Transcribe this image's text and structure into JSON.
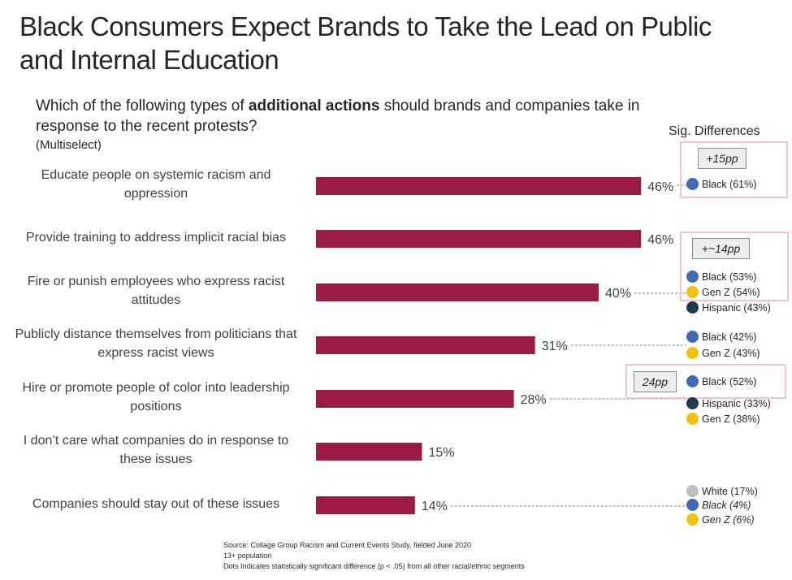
{
  "title": "Black Consumers Expect Brands to Take the Lead on Public and Internal Education",
  "question": {
    "before": "Which of the following types of ",
    "bold": "additional actions",
    "after": " should brands and companies take in response to the recent protests?",
    "note": "(Multiselect)"
  },
  "sig_header": "Sig. Differences",
  "colors": {
    "bar": "#9b1b44",
    "black_dot": "#3f6ab5",
    "genz_dot": "#f2c20f",
    "hispanic_dot": "#1d3a4e",
    "white_dot": "#bfbfbf",
    "highlight_border": "#f2c4d3"
  },
  "chart_data": {
    "type": "bar",
    "orientation": "horizontal",
    "categories": [
      "Educate people on systemic racism and oppression",
      "Provide training to address implicit racial bias",
      "Fire or punish employees who express racist attitudes",
      "Publicly distance themselves from politicians that express racist views",
      "Hire or promote people of color into leadership positions",
      "I don’t care what companies do in response to these issues",
      "Companies should stay out of these issues"
    ],
    "values": [
      46,
      46,
      40,
      31,
      28,
      15,
      14
    ],
    "value_labels": [
      "46%",
      "46%",
      "40%",
      "31%",
      "28%",
      "15%",
      "14%"
    ],
    "xlim": [
      0,
      100
    ],
    "grid": false,
    "legend": "none"
  },
  "sig_differences": [
    {
      "row": 0,
      "items": [
        {
          "label": "Black (61%)",
          "dot": "black"
        }
      ],
      "badge": "+15pp"
    },
    {
      "row": 2,
      "items": [
        {
          "label": "Black (53%)",
          "dot": "black"
        },
        {
          "label": "Gen Z (54%)",
          "dot": "genz"
        },
        {
          "label": "Hispanic (43%)",
          "dot": "hispanic"
        }
      ],
      "badge": "+~14pp"
    },
    {
      "row": 3,
      "items": [
        {
          "label": "Black (42%)",
          "dot": "black"
        },
        {
          "label": "Gen Z (43%)",
          "dot": "genz"
        }
      ]
    },
    {
      "row": 4,
      "items": [
        {
          "label": "Black (52%)",
          "dot": "black"
        },
        {
          "label": "Hispanic (33%)",
          "dot": "hispanic"
        },
        {
          "label": "Gen Z (38%)",
          "dot": "genz"
        }
      ],
      "badge": "24pp"
    },
    {
      "row": 6,
      "items": [
        {
          "label": "White (17%)",
          "dot": "white"
        },
        {
          "label": "Black (4%)",
          "dot": "black",
          "italic": true
        },
        {
          "label": "Gen Z (6%)",
          "dot": "genz",
          "italic": true
        }
      ]
    }
  ],
  "source": [
    "Source: Collage Group Racism and Current Events Study, fielded June 2020",
    "13+ population",
    "Dots Indicates statistically significant difference (p < .05) from all other racial/ethnic segments"
  ]
}
